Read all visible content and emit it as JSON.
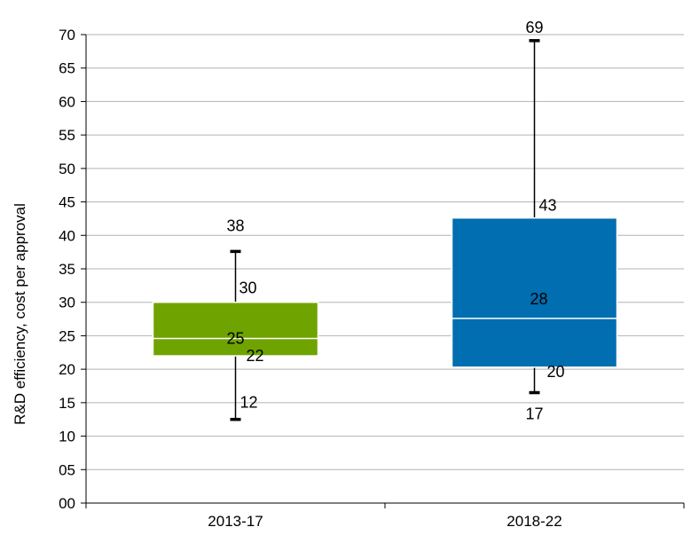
{
  "chart_data": {
    "type": "box",
    "title": "",
    "xlabel": "",
    "ylabel": "R&D efficiency, cost per approval",
    "ylim": [
      0,
      70
    ],
    "yticks": [
      "00",
      "05",
      "10",
      "15",
      "20",
      "25",
      "30",
      "35",
      "40",
      "45",
      "50",
      "55",
      "60",
      "65",
      "70"
    ],
    "grid": true,
    "legend": "none",
    "categories": [
      "2013-17",
      "2018-22"
    ],
    "series": [
      {
        "category": "2013-17",
        "min": 12.5,
        "q1": 22,
        "median": 24.6,
        "q3": 30,
        "max": 37.6,
        "labels": {
          "min": "12",
          "q1": "22",
          "median": "25",
          "q3": "30",
          "max": "38"
        },
        "color": "#6fa300",
        "median_label_color": "#000000"
      },
      {
        "category": "2018-22",
        "min": 16.5,
        "q1": 20.3,
        "median": 27.6,
        "q3": 42.6,
        "max": 69.1,
        "labels": {
          "min": "17",
          "q1": "20",
          "median": "28",
          "q3": "43",
          "max": "69"
        },
        "color": "#006eb0",
        "median_label_color": "#ffffff"
      }
    ]
  }
}
